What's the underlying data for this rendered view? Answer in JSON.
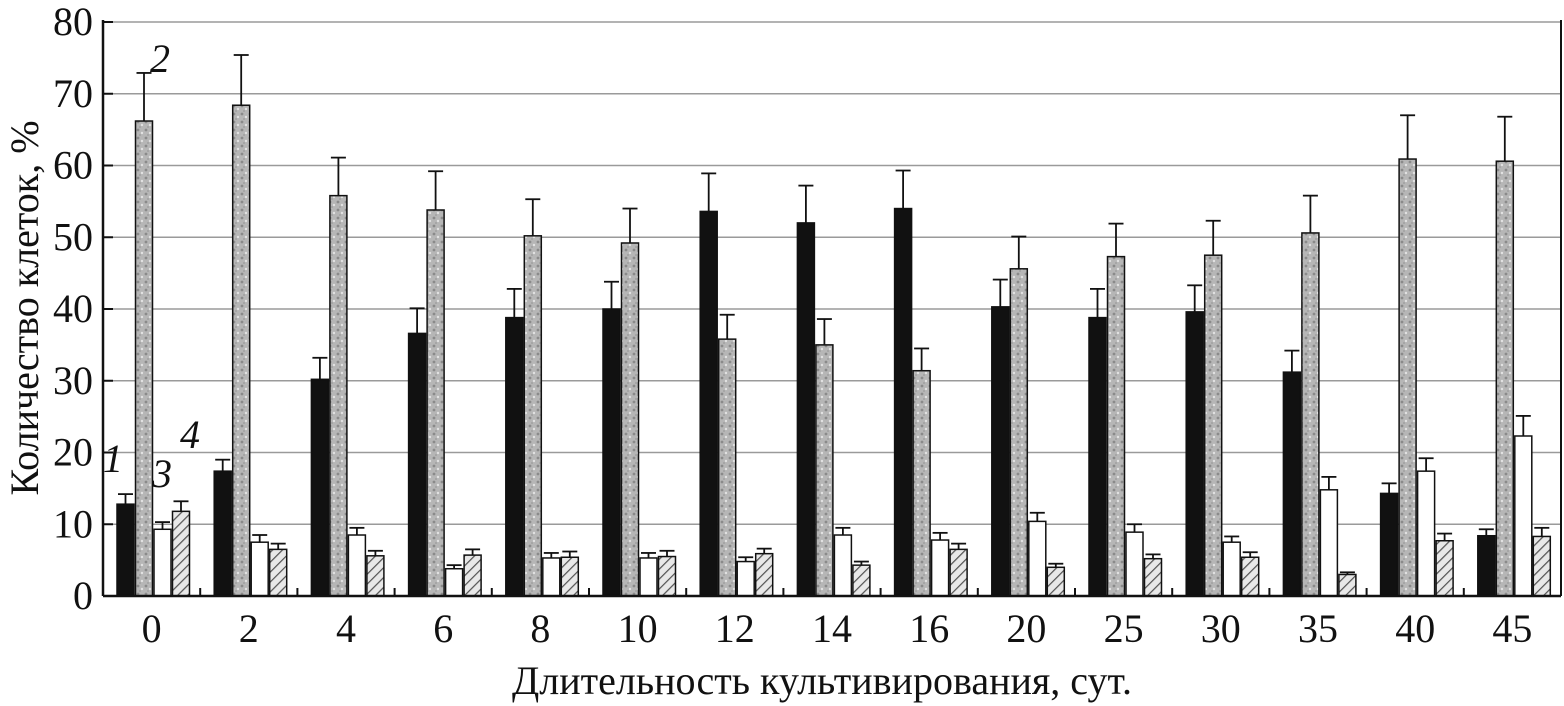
{
  "chart_data": {
    "type": "bar",
    "title": "",
    "xlabel": "Длительность культивирования, сут.",
    "ylabel": "Количество клеток, %",
    "ylim": [
      0,
      80
    ],
    "yticks": [
      0,
      10,
      20,
      30,
      40,
      50,
      60,
      70,
      80
    ],
    "grid": "horizontal",
    "categories": [
      "0",
      "2",
      "4",
      "6",
      "8",
      "10",
      "12",
      "14",
      "16",
      "20",
      "25",
      "30",
      "35",
      "40",
      "45"
    ],
    "series": [
      {
        "name": "1",
        "color": "#111111",
        "values": [
          12.8,
          17.4,
          30.2,
          36.6,
          38.8,
          40.0,
          53.6,
          52.0,
          54.0,
          40.3,
          38.8,
          39.6,
          31.2,
          14.3,
          8.4
        ],
        "errors": [
          1.4,
          1.6,
          3.0,
          3.5,
          4.0,
          3.8,
          5.3,
          5.2,
          5.3,
          3.8,
          4.0,
          3.7,
          3.0,
          1.4,
          0.9
        ]
      },
      {
        "name": "2",
        "color": "#b8b8b8",
        "values": [
          66.2,
          68.4,
          55.8,
          53.8,
          50.2,
          49.2,
          35.8,
          35.0,
          31.4,
          45.6,
          47.3,
          47.5,
          50.6,
          60.9,
          60.6
        ],
        "errors": [
          6.7,
          7.0,
          5.3,
          5.4,
          5.1,
          4.8,
          3.4,
          3.6,
          3.1,
          4.5,
          4.6,
          4.8,
          5.2,
          6.1,
          6.2
        ]
      },
      {
        "name": "3",
        "color": "#ffffff",
        "values": [
          9.3,
          7.5,
          8.5,
          3.8,
          5.3,
          5.3,
          4.8,
          8.5,
          7.8,
          10.4,
          8.9,
          7.5,
          14.8,
          17.4,
          22.3
        ],
        "errors": [
          1.0,
          1.0,
          1.0,
          0.5,
          0.7,
          0.7,
          0.6,
          1.0,
          1.0,
          1.2,
          1.1,
          0.8,
          1.8,
          1.8,
          2.8
        ]
      },
      {
        "name": "4",
        "color": "#cfcfcf",
        "values": [
          11.8,
          6.5,
          5.6,
          5.7,
          5.4,
          5.5,
          5.9,
          4.3,
          6.5,
          4.0,
          5.2,
          5.4,
          3.0,
          7.7,
          8.3
        ],
        "errors": [
          1.4,
          0.8,
          0.7,
          0.8,
          0.8,
          0.8,
          0.7,
          0.5,
          0.8,
          0.5,
          0.6,
          0.7,
          0.3,
          1.0,
          1.2
        ]
      }
    ]
  }
}
